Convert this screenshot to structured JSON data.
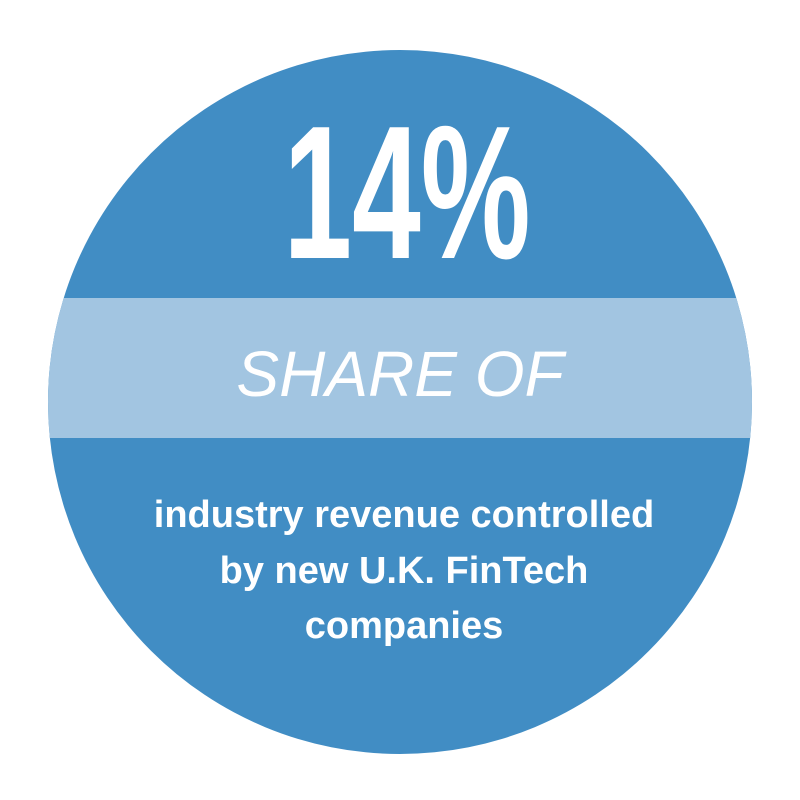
{
  "stat": "14%",
  "band": "SHARE OF",
  "description": [
    "industry revenue controlled",
    "by new U.K. FinTech",
    "companies"
  ]
}
